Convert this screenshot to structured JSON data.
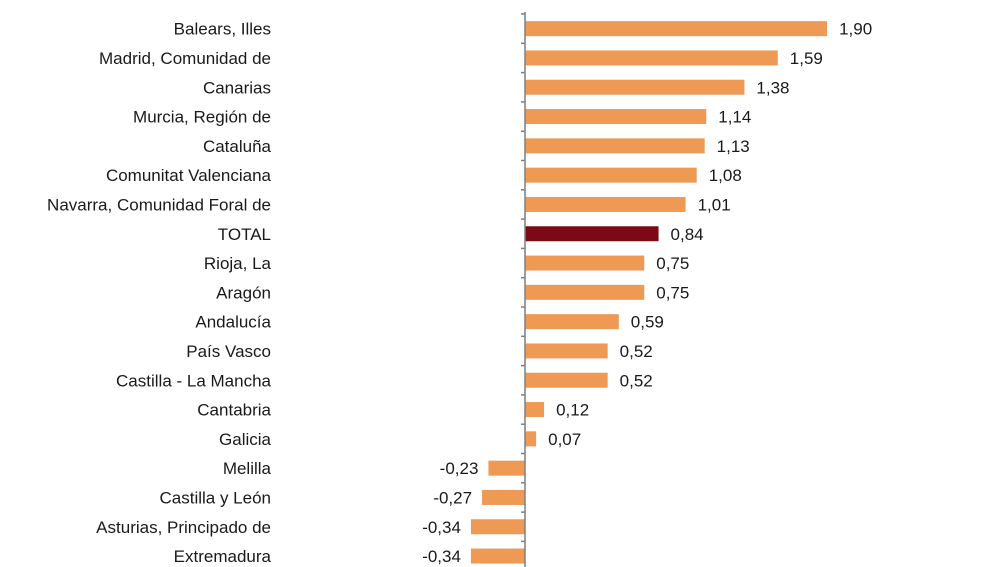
{
  "chart_data": {
    "type": "bar",
    "orientation": "horizontal",
    "title": "",
    "xlabel": "",
    "ylabel": "",
    "categories": [
      "Balears, Illes",
      "Madrid, Comunidad de",
      "Canarias",
      "Murcia, Región de",
      "Cataluña",
      "Comunitat Valenciana",
      "Navarra, Comunidad Foral de",
      "TOTAL",
      "Rioja, La",
      "Aragón",
      "Andalucía",
      "País Vasco",
      "Castilla - La Mancha",
      "Cantabria",
      "Galicia",
      "Melilla",
      "Castilla y León",
      "Asturias, Principado de",
      "Extremadura"
    ],
    "values": [
      1.9,
      1.59,
      1.38,
      1.14,
      1.13,
      1.08,
      1.01,
      0.84,
      0.75,
      0.75,
      0.59,
      0.52,
      0.52,
      0.12,
      0.07,
      -0.23,
      -0.27,
      -0.34,
      -0.34
    ],
    "value_labels": [
      "1,90",
      "1,59",
      "1,38",
      "1,14",
      "1,13",
      "1,08",
      "1,01",
      "0,84",
      "0,75",
      "0,75",
      "0,59",
      "0,52",
      "0,52",
      "0,12",
      "0,07",
      "-0,23",
      "-0,27",
      "-0,34",
      "-0,34"
    ],
    "highlight_category": "TOTAL",
    "colors": {
      "bar": "#ee9a54",
      "highlight": "#7b0a12",
      "axis": "#7f7f7f"
    },
    "grid": false,
    "legend": "none"
  }
}
